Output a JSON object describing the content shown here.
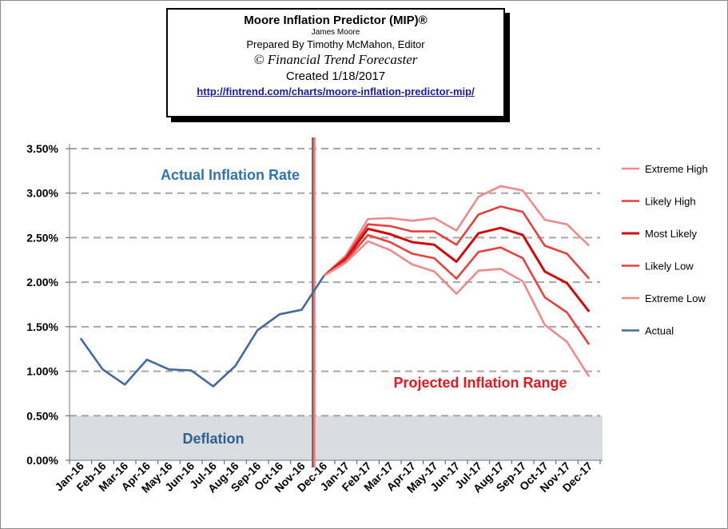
{
  "header": {
    "title": "Moore Inflation Predictor (MIP)®",
    "author": "James Moore",
    "prepared": "Prepared  By Timothy McMahon, Editor",
    "publisher": "© Financial Trend Forecaster",
    "created": "Created  1/18/2017",
    "url": "http://fintrend.com/charts/moore-inflation-predictor-mip/"
  },
  "annotations": {
    "actual": "Actual Inflation Rate",
    "projected": "Projected Inflation Range",
    "deflation": "Deflation"
  },
  "colors": {
    "actual": "#44699a",
    "extreme": "#f08a8a",
    "likely": "#e8403e",
    "most_likely": "#d10a0a",
    "grid": "#a6a6a6",
    "deflation_band": "#d9dde2",
    "divider": "#f08080",
    "actual_text": "#2e75b6",
    "projected_text": "#e8161e",
    "deflation_text": "#2e5f8f"
  },
  "chart_data": {
    "type": "line",
    "x": [
      "Jan-16",
      "Feb-16",
      "Mar-16",
      "Apr-16",
      "May-16",
      "Jun-16",
      "Jul-16",
      "Aug-16",
      "Sep-16",
      "Oct-16",
      "Nov-16",
      "Dec-16",
      "Jan-17",
      "Feb-17",
      "Mar-17",
      "Apr-17",
      "May-17",
      "Jun-17",
      "Jul-17",
      "Aug-17",
      "Sep-17",
      "Oct-17",
      "Nov-17",
      "Dec-17"
    ],
    "y_ticks": [
      "0.00%",
      "0.50%",
      "1.00%",
      "1.50%",
      "2.00%",
      "2.50%",
      "3.00%",
      "3.50%"
    ],
    "ylim": [
      0,
      3.5
    ],
    "grid": true,
    "legend_position": "right",
    "series": [
      {
        "name": "Extreme High",
        "style": "extreme",
        "values": [
          null,
          null,
          null,
          null,
          null,
          null,
          null,
          null,
          null,
          null,
          null,
          2.07,
          2.3,
          2.71,
          2.72,
          2.69,
          2.72,
          2.58,
          2.96,
          3.08,
          3.03,
          2.7,
          2.65,
          2.41
        ]
      },
      {
        "name": "Likely High",
        "style": "likely",
        "values": [
          null,
          null,
          null,
          null,
          null,
          null,
          null,
          null,
          null,
          null,
          null,
          2.07,
          2.28,
          2.65,
          2.63,
          2.57,
          2.57,
          2.42,
          2.76,
          2.85,
          2.79,
          2.41,
          2.32,
          2.04
        ]
      },
      {
        "name": "Most Likely",
        "style": "most_likely",
        "values": [
          null,
          null,
          null,
          null,
          null,
          null,
          null,
          null,
          null,
          null,
          null,
          2.07,
          2.26,
          2.6,
          2.54,
          2.45,
          2.42,
          2.23,
          2.55,
          2.61,
          2.53,
          2.12,
          1.99,
          1.67
        ]
      },
      {
        "name": "Likely Low",
        "style": "likely",
        "values": [
          null,
          null,
          null,
          null,
          null,
          null,
          null,
          null,
          null,
          null,
          null,
          2.07,
          2.24,
          2.53,
          2.45,
          2.32,
          2.27,
          2.04,
          2.34,
          2.39,
          2.27,
          1.83,
          1.66,
          1.3
        ]
      },
      {
        "name": "Extreme Low",
        "style": "extreme",
        "values": [
          null,
          null,
          null,
          null,
          null,
          null,
          null,
          null,
          null,
          null,
          null,
          2.07,
          2.22,
          2.46,
          2.36,
          2.2,
          2.12,
          1.87,
          2.13,
          2.15,
          2.01,
          1.52,
          1.33,
          0.94
        ]
      },
      {
        "name": "Actual",
        "style": "actual",
        "values": [
          1.37,
          1.02,
          0.85,
          1.13,
          1.02,
          1.01,
          0.83,
          1.06,
          1.46,
          1.64,
          1.69,
          2.07,
          null,
          null,
          null,
          null,
          null,
          null,
          null,
          null,
          null,
          null,
          null,
          null
        ]
      }
    ],
    "deflation_band": [
      0,
      0.5
    ]
  }
}
